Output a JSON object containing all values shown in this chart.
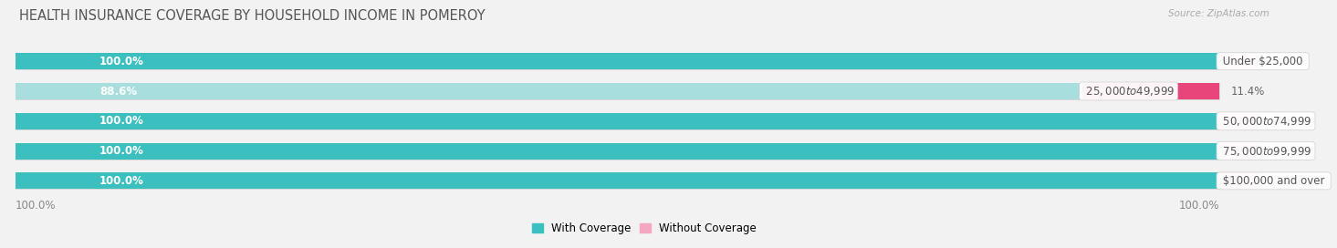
{
  "title": "HEALTH INSURANCE COVERAGE BY HOUSEHOLD INCOME IN POMEROY",
  "source": "Source: ZipAtlas.com",
  "categories": [
    "Under $25,000",
    "$25,000 to $49,999",
    "$50,000 to $74,999",
    "$75,000 to $99,999",
    "$100,000 and over"
  ],
  "with_coverage": [
    100.0,
    88.6,
    100.0,
    100.0,
    100.0
  ],
  "without_coverage": [
    0.0,
    11.4,
    0.0,
    0.0,
    0.0
  ],
  "color_with": "#3bbfbf",
  "color_with_light": "#a8dede",
  "color_without": "#f4a7c3",
  "color_without_bright": "#e8457a",
  "bg_color": "#f2f2f2",
  "bar_bg": "#e0e0e0",
  "bar_outline": "#d0d0d0",
  "title_fontsize": 10.5,
  "label_fontsize": 8.5,
  "pct_fontsize": 8.5,
  "tick_fontsize": 8.5,
  "legend_fontsize": 8.5
}
